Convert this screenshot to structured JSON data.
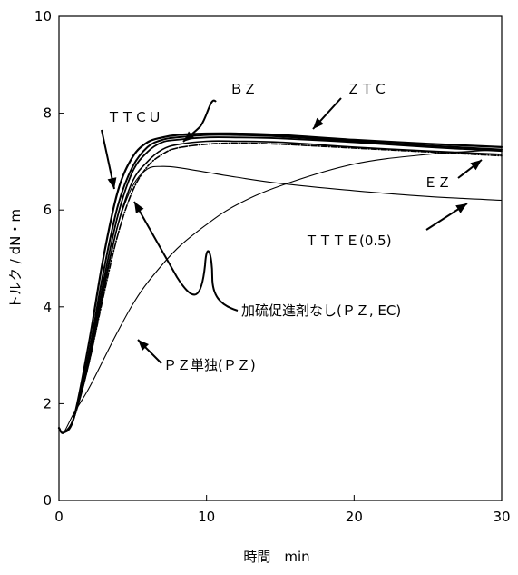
{
  "chart_data": {
    "type": "line",
    "xlabel": "時間　min",
    "ylabel": "トルク / dN・m",
    "xlim": [
      0,
      30
    ],
    "ylim": [
      0,
      10
    ],
    "xticks": [
      0,
      10,
      20,
      30
    ],
    "yticks": [
      0,
      2,
      4,
      6,
      8,
      10
    ],
    "grid": false,
    "series": [
      {
        "name": "TTCU",
        "color": "#000000",
        "x": [
          0,
          0.3,
          1,
          2,
          3,
          4,
          5,
          6,
          7,
          8,
          10,
          12,
          15,
          20,
          25,
          30
        ],
        "y": [
          1.5,
          1.4,
          1.7,
          3.2,
          5.0,
          6.4,
          7.1,
          7.4,
          7.5,
          7.55,
          7.58,
          7.58,
          7.55,
          7.45,
          7.37,
          7.3
        ]
      },
      {
        "name": "BZ",
        "color": "#000000",
        "x": [
          0,
          0.3,
          1,
          2,
          3,
          4,
          5,
          6,
          7,
          8,
          10,
          12,
          15,
          20,
          25,
          30
        ],
        "y": [
          1.5,
          1.4,
          1.7,
          3.0,
          4.7,
          6.1,
          6.9,
          7.3,
          7.45,
          7.5,
          7.55,
          7.55,
          7.52,
          7.42,
          7.33,
          7.25
        ]
      },
      {
        "name": "ZTC",
        "color": "#000000",
        "x": [
          0,
          0.3,
          1,
          2,
          3,
          4,
          5,
          6,
          7,
          8,
          10,
          12,
          15,
          20,
          25,
          30
        ],
        "y": [
          1.5,
          1.4,
          1.7,
          2.9,
          4.5,
          5.9,
          6.8,
          7.2,
          7.4,
          7.45,
          7.5,
          7.5,
          7.48,
          7.4,
          7.3,
          7.22
        ]
      },
      {
        "name": "EZ",
        "color": "#000000",
        "x": [
          0,
          0.3,
          1,
          2,
          3,
          4,
          5,
          6,
          7,
          8,
          10,
          12,
          15,
          20,
          25,
          30
        ],
        "y": [
          1.5,
          1.4,
          1.7,
          2.8,
          4.3,
          5.7,
          6.6,
          7.0,
          7.25,
          7.35,
          7.42,
          7.42,
          7.4,
          7.3,
          7.22,
          7.15
        ]
      },
      {
        "name": "TTTE(0.5)",
        "color": "#000000",
        "x": [
          0,
          0.3,
          1,
          2,
          3,
          4,
          5,
          6,
          7,
          8,
          10,
          12,
          15,
          20,
          25,
          30
        ],
        "y": [
          1.5,
          1.4,
          1.7,
          2.9,
          4.4,
          5.7,
          6.5,
          6.85,
          6.9,
          6.88,
          6.78,
          6.68,
          6.55,
          6.4,
          6.28,
          6.2
        ]
      },
      {
        "name": "加硫促進剤なし(PZ, EC)",
        "color": "#000000",
        "x": [
          0,
          0.3,
          1,
          2,
          3,
          4,
          5,
          6,
          7,
          8,
          10,
          12,
          15,
          20,
          25,
          30
        ],
        "y": [
          1.5,
          1.4,
          1.7,
          2.8,
          4.2,
          5.5,
          6.4,
          6.9,
          7.15,
          7.28,
          7.36,
          7.38,
          7.36,
          7.28,
          7.2,
          7.12
        ]
      },
      {
        "name": "PZ単独(PZ)",
        "color": "#000000",
        "x": [
          0,
          0.3,
          1,
          2,
          3,
          4,
          5,
          6,
          8,
          10,
          12,
          15,
          20,
          25,
          30
        ],
        "y": [
          1.5,
          1.4,
          1.8,
          2.3,
          2.9,
          3.5,
          4.05,
          4.5,
          5.2,
          5.7,
          6.1,
          6.5,
          6.95,
          7.15,
          7.25
        ]
      }
    ],
    "annotations": [
      {
        "text": "ＴＴＣＵ"
      },
      {
        "text": "ＢＺ"
      },
      {
        "text": "ＺＴＣ"
      },
      {
        "text": "ＥＺ"
      },
      {
        "text": "ＴＴＴＥ(0.5)"
      },
      {
        "text": "加硫促進剤なし(ＰＺ, EC)"
      },
      {
        "text": "ＰＺ単独(ＰＺ)"
      }
    ]
  }
}
